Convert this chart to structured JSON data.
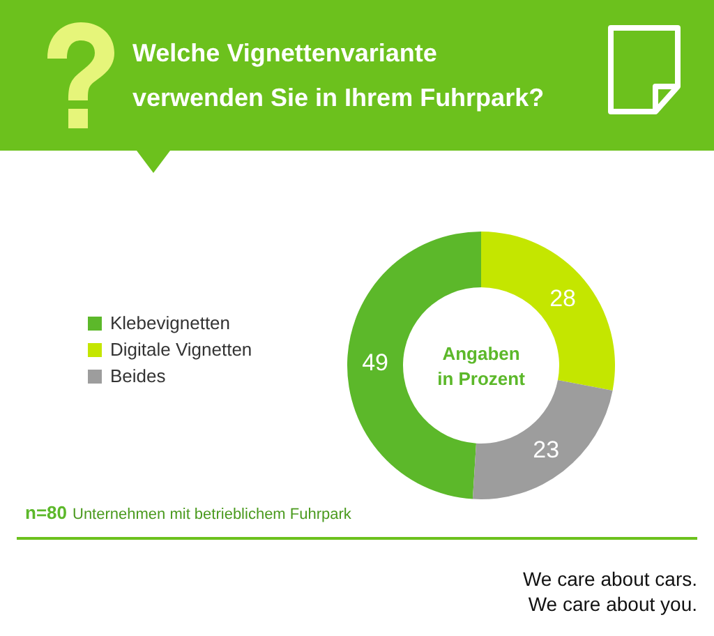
{
  "chart_data": {
    "type": "donut",
    "title": "Welche Vignettenvariante verwenden Sie in Ihrem Fuhrpark?",
    "categories": [
      "Klebevignetten",
      "Digitale Vignetten",
      "Beides"
    ],
    "values": [
      49,
      28,
      23
    ],
    "colors": [
      "#5cb82a",
      "#c4e600",
      "#9d9d9d"
    ],
    "data_labels": true,
    "legend": "left",
    "annotations": [
      "Angaben\nin Prozent",
      "n=80",
      "Unternehmen mit betrieblichem Fuhrpark",
      "We care about cars.\nWe care about you."
    ]
  }
}
